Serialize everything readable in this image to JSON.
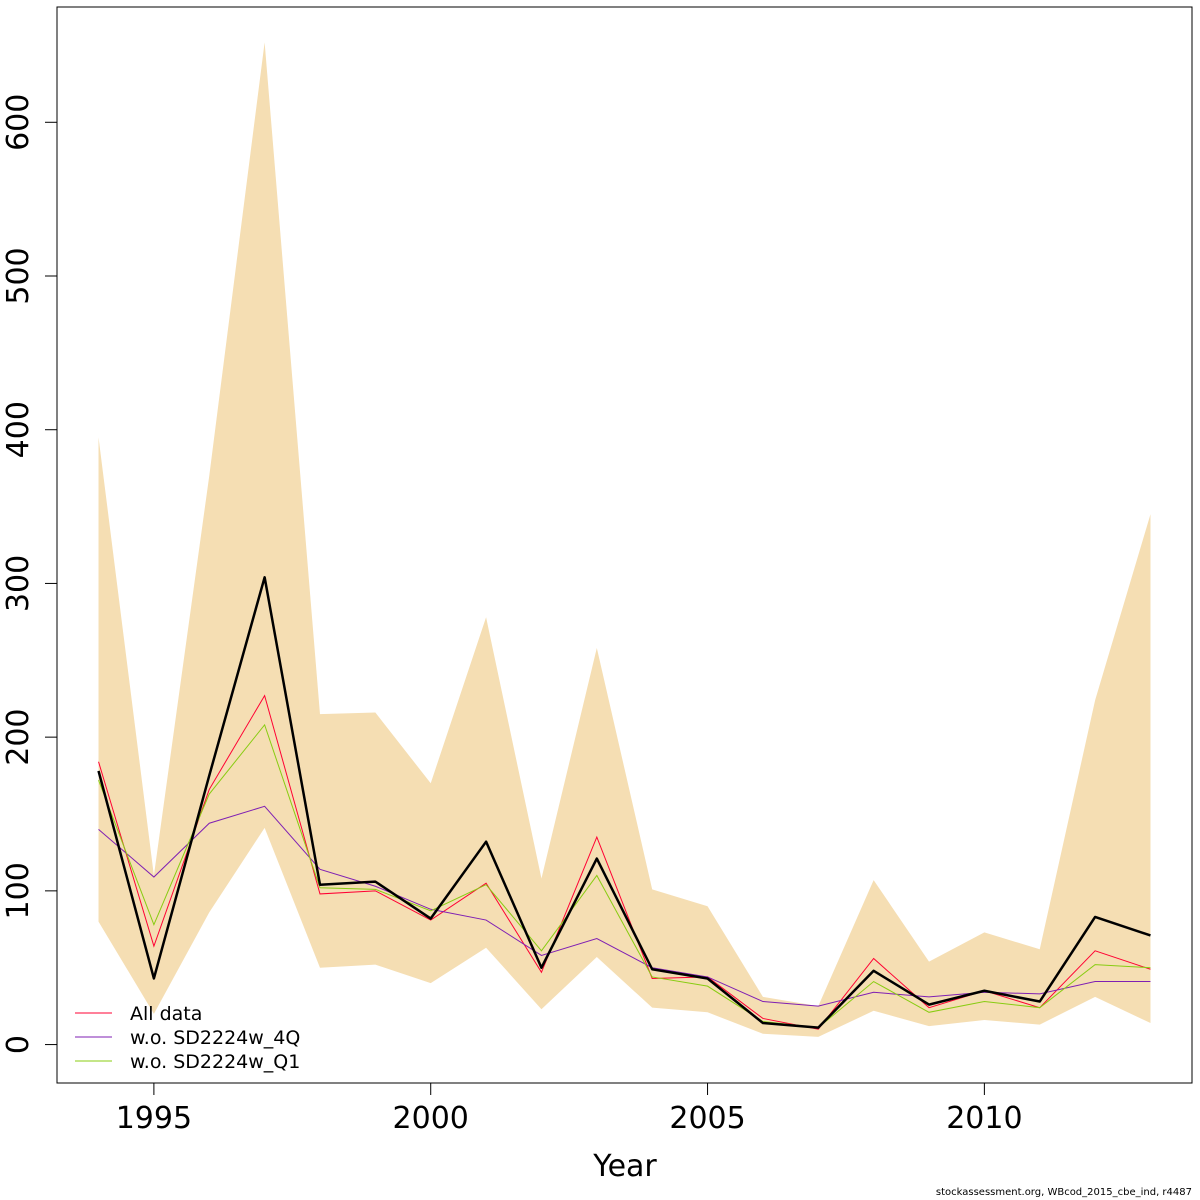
{
  "chart_data": {
    "type": "line",
    "title": "",
    "xlabel": "Year",
    "ylabel": "",
    "xlim": [
      1993.25,
      2013.75
    ],
    "ylim": [
      -25,
      675
    ],
    "x_ticks": [
      1995,
      2000,
      2005,
      2010
    ],
    "y_ticks": [
      0,
      100,
      200,
      300,
      400,
      500,
      600
    ],
    "x": [
      1994,
      1995,
      1996,
      1997,
      1998,
      1999,
      2000,
      2001,
      2002,
      2003,
      2004,
      2005,
      2006,
      2007,
      2008,
      2009,
      2010,
      2011,
      2012,
      2013
    ],
    "band": {
      "color": "#f5deb3",
      "lower": [
        80,
        20,
        86,
        141,
        50,
        52,
        40,
        63,
        23,
        57,
        24,
        21,
        7,
        5,
        22,
        12,
        16,
        13,
        31,
        14
      ],
      "upper": [
        395,
        110,
        370,
        652,
        215,
        216,
        170,
        278,
        108,
        258,
        101,
        90,
        31,
        25,
        107,
        54,
        73,
        62,
        224,
        345
      ]
    },
    "main_line": {
      "color": "#000000",
      "values": [
        178,
        43,
        175,
        304,
        104,
        106,
        82,
        132,
        50,
        121,
        49,
        43,
        14,
        11,
        48,
        26,
        35,
        28,
        83,
        71
      ]
    },
    "series": [
      {
        "name": "All data",
        "color": "#ff0033",
        "values": [
          184,
          64,
          166,
          227,
          98,
          100,
          81,
          105,
          47,
          135,
          43,
          44,
          17,
          10,
          56,
          24,
          35,
          24,
          61,
          49
        ]
      },
      {
        "name": "w.o. SD2224w_4Q",
        "color": "#7f1fb3",
        "values": [
          140,
          109,
          144,
          155,
          114,
          103,
          88,
          81,
          58,
          69,
          50,
          44,
          28,
          25,
          34,
          31,
          34,
          33,
          41,
          41
        ]
      },
      {
        "name": "w.o. SD2224w_Q1",
        "color": "#88cc11",
        "values": [
          172,
          78,
          163,
          208,
          102,
          101,
          87,
          104,
          61,
          110,
          44,
          38,
          15,
          11,
          41,
          21,
          28,
          24,
          52,
          50
        ]
      }
    ],
    "legend_position": "bottom-left",
    "grid": false
  },
  "footer": {
    "credit": "stockassessment.org, WBcod_2015_cbe_ind, r4487"
  }
}
